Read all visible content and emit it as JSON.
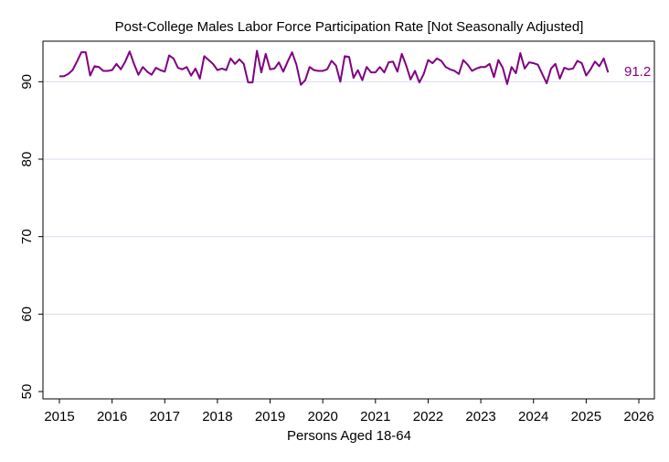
{
  "chart_data": {
    "type": "line",
    "title": "Post-College Males Labor Force Participation Rate [Not Seasonally Adjusted]",
    "xlabel": "Persons Aged 18-64",
    "ylabel": "",
    "xlim": [
      2015,
      2026
    ],
    "ylim": [
      50,
      95
    ],
    "x_ticks": [
      "2015",
      "2016",
      "2017",
      "2018",
      "2019",
      "2020",
      "2021",
      "2022",
      "2023",
      "2024",
      "2025",
      "2026"
    ],
    "y_ticks": [
      "50",
      "60",
      "70",
      "80",
      "90"
    ],
    "grid": "horizontal",
    "line_color": "#800080",
    "grid_color": "#dcdcf0",
    "end_label": "91.2",
    "series": [
      {
        "x_start": "2015-01",
        "frequency": "monthly",
        "values": [
          90.7,
          90.7,
          91.0,
          91.5,
          92.6,
          93.8,
          93.8,
          90.8,
          92.0,
          91.9,
          91.4,
          91.4,
          91.5,
          92.3,
          91.6,
          92.6,
          93.9,
          92.3,
          90.9,
          91.9,
          91.3,
          90.9,
          91.8,
          91.5,
          91.3,
          93.4,
          93.0,
          91.8,
          91.6,
          91.9,
          90.8,
          91.7,
          90.4,
          93.3,
          92.8,
          92.3,
          91.5,
          91.7,
          91.5,
          93.0,
          92.3,
          92.9,
          92.3,
          89.9,
          89.9,
          94.0,
          91.2,
          93.6,
          91.6,
          91.7,
          92.5,
          91.3,
          92.6,
          93.8,
          92.2,
          89.6,
          90.2,
          91.9,
          91.5,
          91.4,
          91.4,
          91.6,
          92.7,
          92.1,
          90.0,
          93.3,
          93.2,
          90.5,
          91.5,
          90.2,
          91.9,
          91.2,
          91.2,
          91.9,
          91.2,
          92.5,
          92.6,
          91.3,
          93.6,
          92.1,
          90.3,
          91.4,
          89.9,
          91.0,
          92.8,
          92.4,
          93.0,
          92.7,
          91.9,
          91.6,
          91.4,
          91.0,
          92.8,
          92.2,
          91.4,
          91.7,
          91.9,
          91.9,
          92.3,
          90.6,
          92.8,
          91.8,
          89.7,
          91.9,
          91.1,
          93.7,
          91.7,
          92.5,
          92.4,
          92.2,
          91.0,
          89.8,
          91.7,
          92.3,
          90.4,
          91.8,
          91.6,
          91.7,
          92.7,
          92.4,
          90.8,
          91.6,
          92.6,
          92.0,
          93.0,
          91.2
        ]
      }
    ]
  }
}
